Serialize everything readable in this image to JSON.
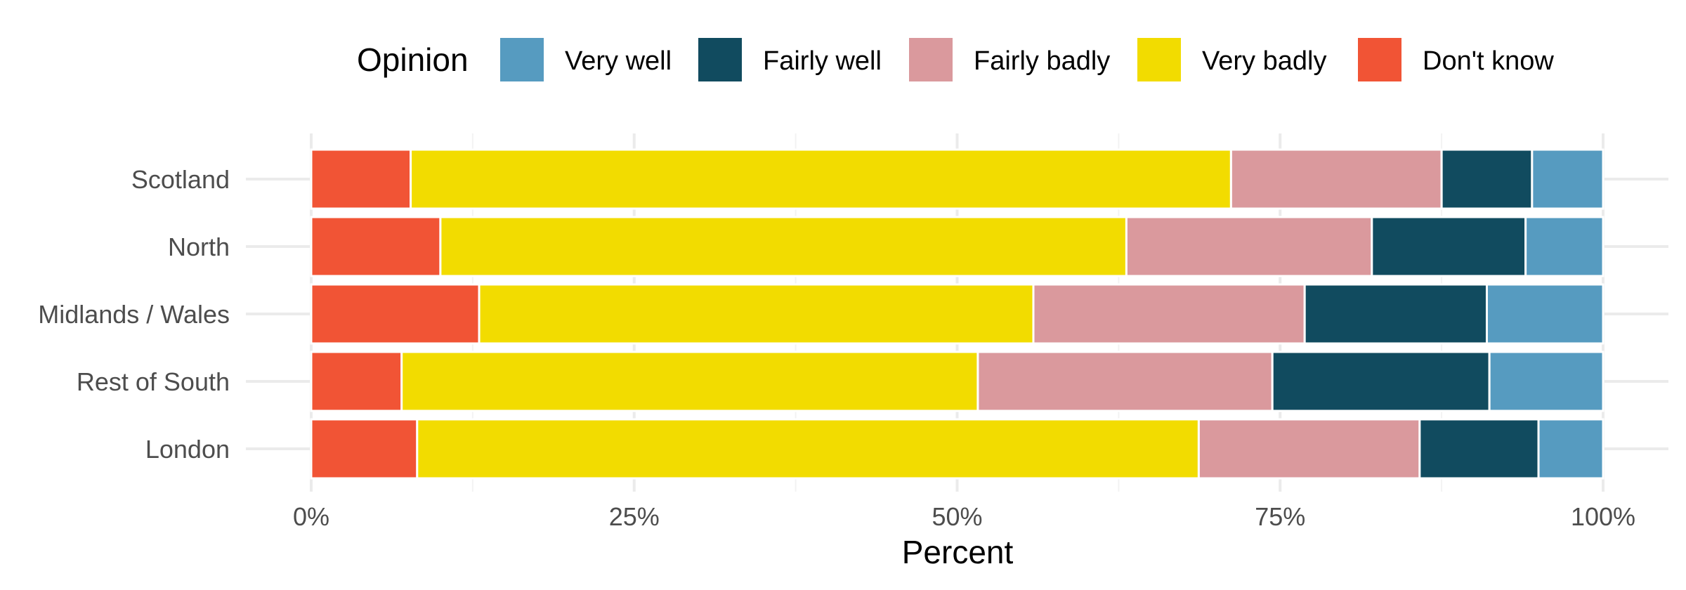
{
  "chart_data": {
    "type": "bar",
    "orientation": "horizontal",
    "stacked": true,
    "xlabel": "Percent",
    "ylabel": "",
    "xlim": [
      0,
      100
    ],
    "x_ticks": [
      0,
      25,
      50,
      75,
      100
    ],
    "x_tick_labels": [
      "0%",
      "25%",
      "50%",
      "75%",
      "100%"
    ],
    "categories": [
      "Scotland",
      "North",
      "Midlands / Wales",
      "Rest of South",
      "London"
    ],
    "legend": {
      "title": "Opinion",
      "position": "top",
      "order": [
        "Very well",
        "Fairly well",
        "Fairly badly",
        "Very badly",
        "Don't know"
      ]
    },
    "stack_order": [
      "Don't know",
      "Very badly",
      "Fairly badly",
      "Fairly well",
      "Very well"
    ],
    "series": [
      {
        "name": "Very well",
        "color": "#569bc0",
        "values": [
          5.5,
          6.0,
          9.0,
          8.8,
          5.0
        ]
      },
      {
        "name": "Fairly well",
        "color": "#114b5f",
        "values": [
          7.0,
          11.9,
          14.1,
          16.8,
          9.2
        ]
      },
      {
        "name": "Fairly badly",
        "color": "#da999d",
        "values": [
          16.3,
          19.0,
          21.0,
          22.8,
          17.1
        ]
      },
      {
        "name": "Very badly",
        "color": "#f2dc00",
        "values": [
          63.5,
          53.1,
          42.9,
          44.6,
          60.5
        ]
      },
      {
        "name": "Don't know",
        "color": "#f15435",
        "values": [
          7.7,
          10.0,
          13.0,
          7.0,
          8.2
        ]
      }
    ],
    "grid": true
  }
}
